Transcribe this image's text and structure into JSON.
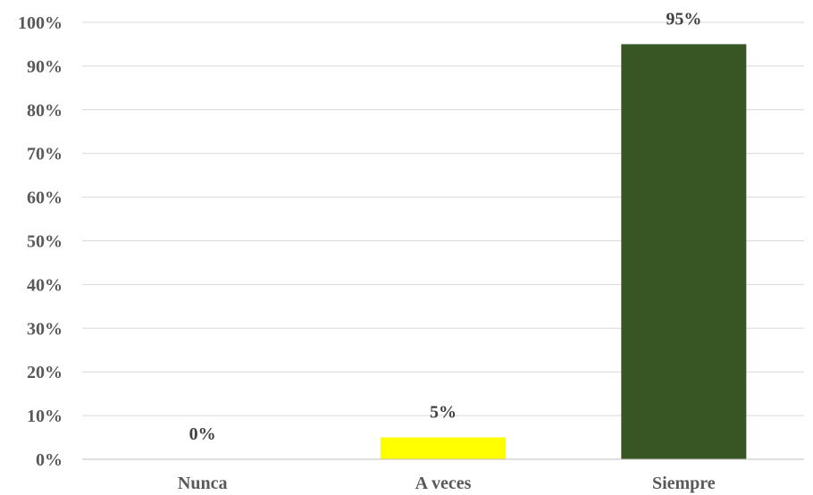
{
  "chart_data": {
    "type": "bar",
    "categories": [
      "Nunca",
      "A veces",
      "Siempre"
    ],
    "values": [
      0,
      5,
      95
    ],
    "data_labels": [
      "0%",
      "5%",
      "95%"
    ],
    "bar_colors": [
      "#ffffff",
      "#ffff00",
      "#375623"
    ],
    "ylim": [
      0,
      100
    ],
    "yticks": [
      0,
      10,
      20,
      30,
      40,
      50,
      60,
      70,
      80,
      90,
      100
    ],
    "ytick_labels": [
      "0%",
      "10%",
      "20%",
      "30%",
      "40%",
      "50%",
      "60%",
      "70%",
      "80%",
      "90%",
      "100%"
    ],
    "grid": true,
    "title": "",
    "xlabel": "",
    "ylabel": ""
  }
}
